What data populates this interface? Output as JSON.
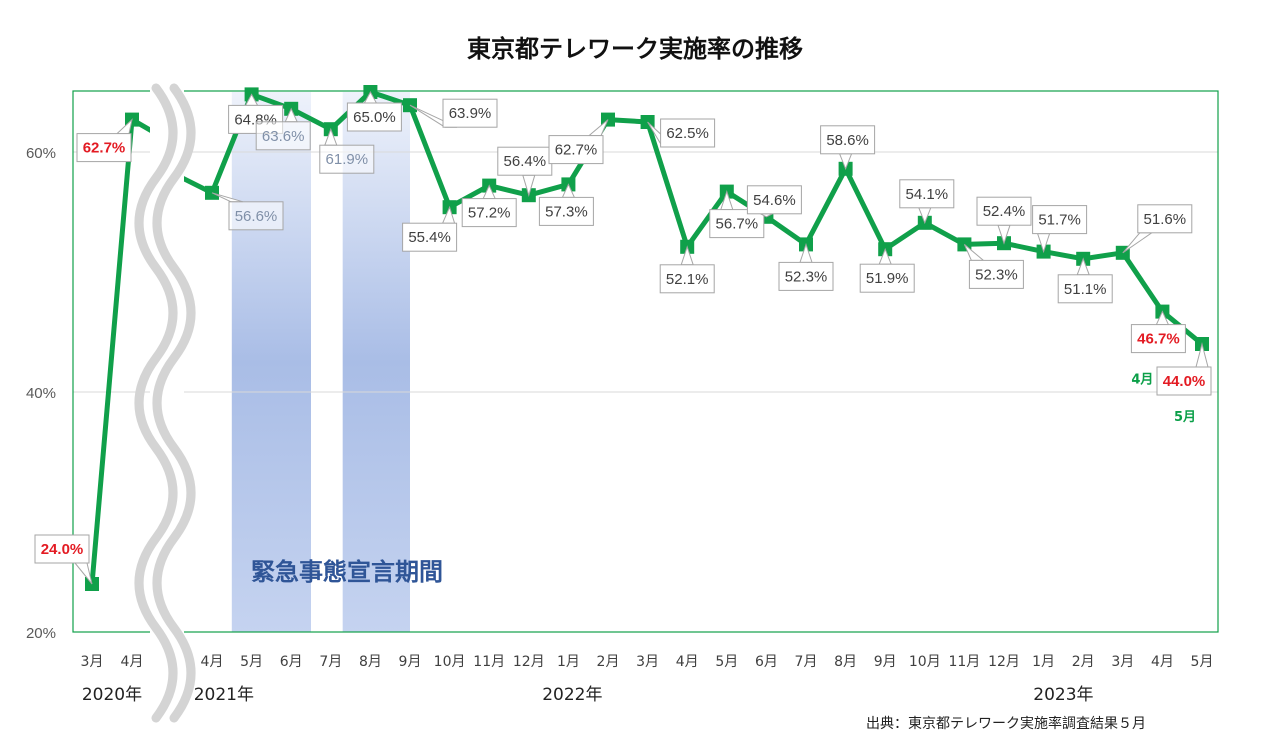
{
  "chart_data": {
    "type": "line",
    "title": "東京都テレワーク実施率の推移",
    "ylim": [
      20,
      66
    ],
    "yticks": [
      {
        "value": 20,
        "label": "20%"
      },
      {
        "value": 40,
        "label": "40%"
      },
      {
        "value": 60,
        "label": "60%"
      }
    ],
    "categories": [
      "3月",
      "4月",
      "4月",
      "5月",
      "6月",
      "7月",
      "8月",
      "9月",
      "10月",
      "11月",
      "12月",
      "1月",
      "2月",
      "3月",
      "4月",
      "5月",
      "6月",
      "7月",
      "8月",
      "9月",
      "10月",
      "11月",
      "12月",
      "1月",
      "2月",
      "3月",
      "4月",
      "5月"
    ],
    "series": [
      {
        "name": "テレワーク実施率",
        "values": [
          24.0,
          62.7,
          56.6,
          64.8,
          63.6,
          61.9,
          65.0,
          63.9,
          55.4,
          57.2,
          56.4,
          57.3,
          62.7,
          62.5,
          52.1,
          56.7,
          54.6,
          52.3,
          58.6,
          51.9,
          54.1,
          52.3,
          52.4,
          51.7,
          51.1,
          51.6,
          46.7,
          44.0
        ],
        "labels": [
          "24.0%",
          "62.7%",
          "56.6%",
          "64.8%",
          "63.6%",
          "61.9%",
          "65.0%",
          "63.9%",
          "55.4%",
          "57.2%",
          "56.4%",
          "57.3%",
          "62.7%",
          "62.5%",
          "52.1%",
          "56.7%",
          "54.6%",
          "52.3%",
          "58.6%",
          "51.9%",
          "54.1%",
          "52.3%",
          "52.4%",
          "51.7%",
          "51.1%",
          "51.6%",
          "46.7%",
          "44.0%"
        ],
        "color": "#10a04a"
      }
    ],
    "highlight_color": "#e31b23",
    "years": [
      {
        "label": "2020年",
        "category_index": 0.5
      },
      {
        "label": "2021年",
        "category_index": 2.3
      },
      {
        "label": "2022年",
        "category_index": 11.1
      },
      {
        "label": "2023年",
        "category_index": 23.5
      }
    ],
    "emergency_periods": [
      {
        "from": 2.5,
        "to": 4.5
      },
      {
        "from": 5.3,
        "to": 7.0
      }
    ],
    "emergency_label": "緊急事態宣言期間",
    "emergency_color": "#a9bde6",
    "annotations": [
      {
        "text": "4月",
        "category_index": 26
      },
      {
        "text": "5月",
        "category_index": 27
      }
    ],
    "source": "出典：東京都テレワーク実施率調査結果５月",
    "axis_break_after_index": 1
  }
}
